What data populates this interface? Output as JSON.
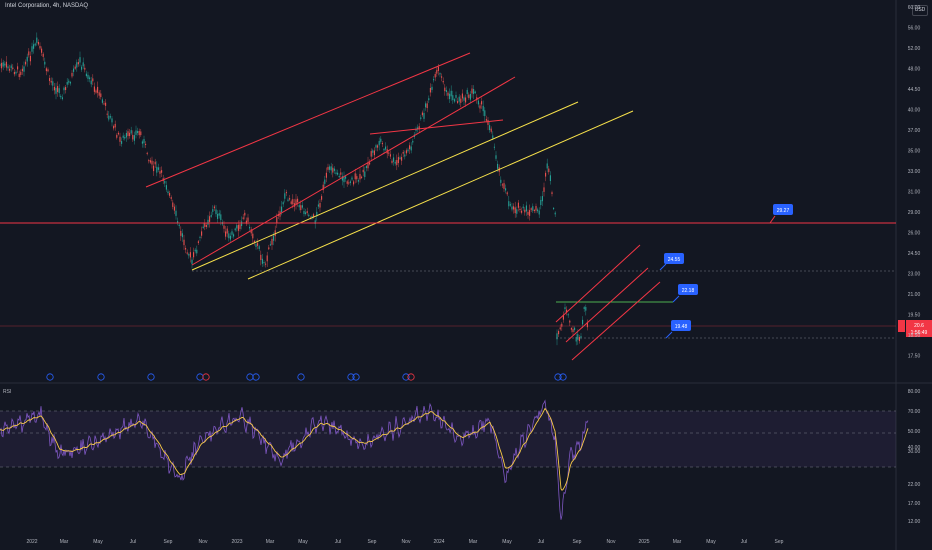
{
  "header": {
    "title": "Intel Corporation, 4h, NASDAQ",
    "currency": "USD"
  },
  "price_axis": [
    "60.00",
    "56.00",
    "52.00",
    "48.00",
    "44.50",
    "40.00",
    "37.00",
    "35.00",
    "33.00",
    "31.00",
    "29.00",
    "26.00",
    "24.50",
    "23.00",
    "21.00",
    "19.50",
    "18.50",
    "17.50"
  ],
  "current_price": {
    "ticker": "INTC",
    "price": "20.6",
    "extra": "1:56:49"
  },
  "rsi_panel": {
    "title": "RSI",
    "axis": [
      "80.00",
      "70.00",
      "50.00",
      "40.00",
      "30.00",
      "22.00",
      "17.00",
      "12.00"
    ]
  },
  "time_axis": [
    "2022",
    "Mar",
    "May",
    "Jul",
    "Sep",
    "Nov",
    "2023",
    "Mar",
    "May",
    "Jul",
    "Sep",
    "Nov",
    "2024",
    "Mar",
    "May",
    "Jul",
    "Sep",
    "Nov",
    "2025",
    "Mar",
    "May",
    "Jul",
    "Sep"
  ],
  "callouts": [
    {
      "text": "29.27",
      "color": "#2962ff"
    },
    {
      "text": "24.55",
      "color": "#2962ff"
    },
    {
      "text": "22.18",
      "color": "#2962ff"
    },
    {
      "text": "19.48",
      "color": "#2962ff"
    }
  ],
  "event_markers": [
    "E",
    "E",
    "E",
    "E",
    "D",
    "E",
    "E",
    "E",
    "E",
    "E",
    "E",
    "D",
    "+",
    "E"
  ],
  "colors": {
    "up": "#26a69a",
    "down": "#ef5350",
    "rsi": "#7e57c2",
    "ma": "#f7c948",
    "support": "#f23645",
    "channel_yellow": "#f7e14b"
  }
}
